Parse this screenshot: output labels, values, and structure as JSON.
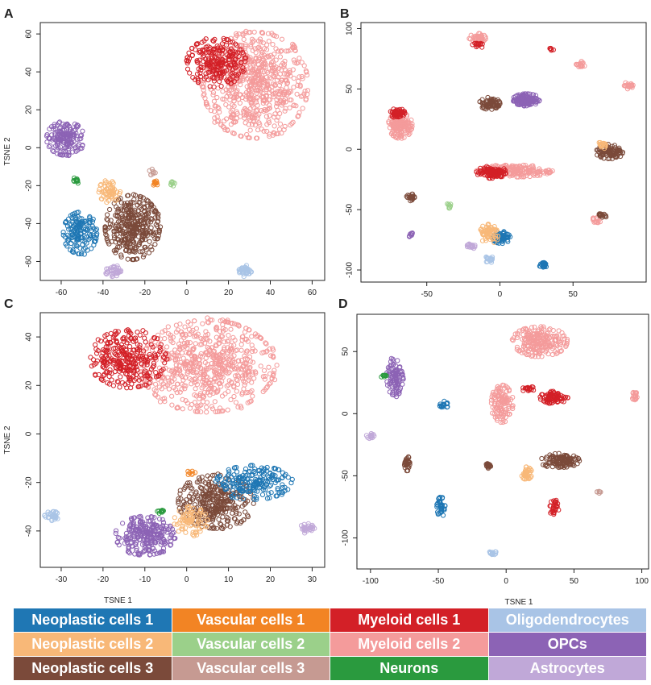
{
  "colors": {
    "Neoplastic cells 1": "#1f77b4",
    "Neoplastic cells 2": "#f8b878",
    "Neoplastic cells 3": "#7b4a3a",
    "Vascular cells 1": "#f28424",
    "Vascular cells 2": "#9bd08a",
    "Vascular cells 3": "#c69a92",
    "Myeloid cells 1": "#d32027",
    "Myeloid cells 2": "#f49b9b",
    "Neurons": "#2a9a3e",
    "Oligodendrocytes": "#a9c4e6",
    "OPCs": "#8c63b5",
    "Astrocytes": "#c0a8d8"
  },
  "legend": {
    "items": [
      "Neoplastic cells 1",
      "Vascular cells 1",
      "Myeloid cells 1",
      "Oligodendrocytes",
      "Neoplastic cells 2",
      "Vascular cells 2",
      "Myeloid cells 2",
      "OPCs",
      "Neoplastic cells 3",
      "Vascular cells 3",
      "Neurons",
      "Astrocytes"
    ]
  },
  "chart_data": [
    {
      "panel": "A",
      "type": "scatter",
      "xlabel": "",
      "ylabel": "TSNE 2",
      "xlim": [
        -70,
        66
      ],
      "ylim": [
        -70,
        66
      ],
      "xticks": [
        -60,
        -40,
        -20,
        0,
        20,
        40,
        60
      ],
      "yticks": [
        -60,
        -40,
        -20,
        0,
        20,
        40,
        60
      ],
      "clusters": [
        {
          "name": "Myeloid cells 2",
          "cx": 33,
          "cy": 33,
          "rx": 25,
          "ry": 28,
          "n": 650
        },
        {
          "name": "Myeloid cells 1",
          "cx": 14,
          "cy": 45,
          "rx": 14,
          "ry": 13,
          "n": 240
        },
        {
          "name": "OPCs",
          "cx": -58,
          "cy": 5,
          "rx": 9,
          "ry": 9,
          "n": 170
        },
        {
          "name": "Neoplastic cells 1",
          "cx": -51,
          "cy": -45,
          "rx": 8,
          "ry": 11,
          "n": 150
        },
        {
          "name": "Neoplastic cells 3",
          "cx": -26,
          "cy": -42,
          "rx": 13,
          "ry": 17,
          "n": 360
        },
        {
          "name": "Neoplastic cells 2",
          "cx": -37,
          "cy": -23,
          "rx": 5,
          "ry": 6,
          "n": 60
        },
        {
          "name": "Astrocytes",
          "cx": -35,
          "cy": -65,
          "rx": 4,
          "ry": 3,
          "n": 40
        },
        {
          "name": "Oligodendrocytes",
          "cx": 28,
          "cy": -65,
          "rx": 3,
          "ry": 3,
          "n": 40
        },
        {
          "name": "Neurons",
          "cx": -53,
          "cy": -17,
          "rx": 2,
          "ry": 2,
          "n": 12
        },
        {
          "name": "Vascular cells 1",
          "cx": -15,
          "cy": -18,
          "rx": 1.5,
          "ry": 2,
          "n": 10
        },
        {
          "name": "Vascular cells 2",
          "cx": -7,
          "cy": -19,
          "rx": 1.5,
          "ry": 2,
          "n": 8
        },
        {
          "name": "Vascular cells 3",
          "cx": -16,
          "cy": -13,
          "rx": 2,
          "ry": 2,
          "n": 8
        }
      ]
    },
    {
      "panel": "B",
      "type": "scatter",
      "xlabel": "",
      "ylabel": "",
      "xlim": [
        -95,
        100
      ],
      "ylim": [
        -110,
        105
      ],
      "xticks": [
        -50,
        0,
        50
      ],
      "yticks": [
        -100,
        -50,
        0,
        50,
        100
      ],
      "clusters": [
        {
          "name": "Myeloid cells 2",
          "cx": -68,
          "cy": 20,
          "rx": 8,
          "ry": 11,
          "n": 160
        },
        {
          "name": "Myeloid cells 1",
          "cx": -70,
          "cy": 30,
          "rx": 5,
          "ry": 4,
          "n": 60
        },
        {
          "name": "Myeloid cells 2",
          "cx": 10,
          "cy": -18,
          "rx": 25,
          "ry": 5,
          "n": 180
        },
        {
          "name": "Myeloid cells 1",
          "cx": -6,
          "cy": -19,
          "rx": 10,
          "ry": 5,
          "n": 100
        },
        {
          "name": "Myeloid cells 2",
          "cx": -15,
          "cy": 92,
          "rx": 6,
          "ry": 4,
          "n": 50
        },
        {
          "name": "Myeloid cells 1",
          "cx": -15,
          "cy": 86,
          "rx": 4,
          "ry": 2,
          "n": 15
        },
        {
          "name": "Myeloid cells 2",
          "cx": 55,
          "cy": 70,
          "rx": 3,
          "ry": 3,
          "n": 20
        },
        {
          "name": "Myeloid cells 2",
          "cx": 88,
          "cy": 53,
          "rx": 3,
          "ry": 3,
          "n": 20
        },
        {
          "name": "Myeloid cells 2",
          "cx": 66,
          "cy": -59,
          "rx": 3,
          "ry": 3,
          "n": 15
        },
        {
          "name": "OPCs",
          "cx": 18,
          "cy": 41,
          "rx": 9,
          "ry": 5,
          "n": 150
        },
        {
          "name": "Neoplastic cells 3",
          "cx": -7,
          "cy": 38,
          "rx": 7,
          "ry": 5,
          "n": 70
        },
        {
          "name": "Neoplastic cells 3",
          "cx": 75,
          "cy": -2,
          "rx": 9,
          "ry": 6,
          "n": 100
        },
        {
          "name": "Neoplastic cells 3",
          "cx": -61,
          "cy": -40,
          "rx": 3,
          "ry": 3,
          "n": 20
        },
        {
          "name": "Neoplastic cells 3",
          "cx": 70,
          "cy": -55,
          "rx": 3,
          "ry": 2,
          "n": 15
        },
        {
          "name": "Neoplastic cells 1",
          "cx": 1,
          "cy": -73,
          "rx": 6,
          "ry": 5,
          "n": 80
        },
        {
          "name": "Neoplastic cells 1",
          "cx": 30,
          "cy": -96,
          "rx": 3,
          "ry": 2,
          "n": 30
        },
        {
          "name": "Neoplastic cells 2",
          "cx": -7,
          "cy": -70,
          "rx": 7,
          "ry": 8,
          "n": 60
        },
        {
          "name": "Neoplastic cells 2",
          "cx": 70,
          "cy": 3,
          "rx": 4,
          "ry": 3,
          "n": 20
        },
        {
          "name": "Astrocytes",
          "cx": -20,
          "cy": -80,
          "rx": 3,
          "ry": 3,
          "n": 20
        },
        {
          "name": "Oligodendrocytes",
          "cx": -7,
          "cy": -91,
          "rx": 3,
          "ry": 3,
          "n": 20
        },
        {
          "name": "OPCs",
          "cx": -61,
          "cy": -71,
          "rx": 2,
          "ry": 2,
          "n": 10
        },
        {
          "name": "Vascular cells 2",
          "cx": -35,
          "cy": -47,
          "rx": 2,
          "ry": 2,
          "n": 8
        },
        {
          "name": "Myeloid cells 1",
          "cx": 35,
          "cy": 83,
          "rx": 2,
          "ry": 1,
          "n": 6
        }
      ]
    },
    {
      "panel": "C",
      "type": "scatter",
      "xlabel": "TSNE 1",
      "ylabel": "TSNE 2",
      "xlim": [
        -35,
        33
      ],
      "ylim": [
        -55,
        50
      ],
      "xticks": [
        -30,
        -20,
        -10,
        0,
        10,
        20,
        30
      ],
      "yticks": [
        -40,
        -20,
        0,
        20,
        40
      ],
      "clusters": [
        {
          "name": "Myeloid cells 2",
          "cx": 5,
          "cy": 28,
          "rx": 16,
          "ry": 19,
          "n": 650
        },
        {
          "name": "Myeloid cells 1",
          "cx": -14,
          "cy": 31,
          "rx": 9,
          "ry": 12,
          "n": 300
        },
        {
          "name": "OPCs",
          "cx": -10,
          "cy": -42,
          "rx": 7,
          "ry": 8,
          "n": 260
        },
        {
          "name": "Neoplastic cells 3",
          "cx": 7,
          "cy": -28,
          "rx": 9,
          "ry": 11,
          "n": 320
        },
        {
          "name": "Neoplastic cells 1",
          "cx": 16,
          "cy": -20,
          "rx": 9,
          "ry": 7,
          "n": 200
        },
        {
          "name": "Neoplastic cells 2",
          "cx": 1,
          "cy": -36,
          "rx": 4,
          "ry": 6,
          "n": 80
        },
        {
          "name": "Oligodendrocytes",
          "cx": -32,
          "cy": -34,
          "rx": 2,
          "ry": 2,
          "n": 30
        },
        {
          "name": "Astrocytes",
          "cx": 29,
          "cy": -39,
          "rx": 2,
          "ry": 2,
          "n": 30
        },
        {
          "name": "Neurons",
          "cx": -6,
          "cy": -32,
          "rx": 1,
          "ry": 1,
          "n": 10
        },
        {
          "name": "Vascular cells 1",
          "cx": 1,
          "cy": -16,
          "rx": 1,
          "ry": 1,
          "n": 8
        }
      ]
    },
    {
      "panel": "D",
      "type": "scatter",
      "xlabel": "TSNE 1",
      "ylabel": "",
      "xlim": [
        -110,
        105
      ],
      "ylim": [
        -125,
        80
      ],
      "xticks": [
        -100,
        -50,
        0,
        50,
        100
      ],
      "yticks": [
        -100,
        -50,
        0,
        50
      ],
      "clusters": [
        {
          "name": "Myeloid cells 2",
          "cx": 25,
          "cy": 58,
          "rx": 20,
          "ry": 12,
          "n": 220
        },
        {
          "name": "Myeloid cells 2",
          "cx": -3,
          "cy": 8,
          "rx": 8,
          "ry": 15,
          "n": 120
        },
        {
          "name": "Myeloid cells 2",
          "cx": 95,
          "cy": 14,
          "rx": 2,
          "ry": 4,
          "n": 20
        },
        {
          "name": "Myeloid cells 1",
          "cx": 35,
          "cy": 13,
          "rx": 10,
          "ry": 5,
          "n": 80
        },
        {
          "name": "Myeloid cells 1",
          "cx": 16,
          "cy": 20,
          "rx": 5,
          "ry": 2,
          "n": 20
        },
        {
          "name": "Myeloid cells 1",
          "cx": 35,
          "cy": -75,
          "rx": 4,
          "ry": 6,
          "n": 30
        },
        {
          "name": "OPCs",
          "cx": -82,
          "cy": 30,
          "rx": 6,
          "ry": 16,
          "n": 100
        },
        {
          "name": "Neoplastic cells 3",
          "cx": 40,
          "cy": -38,
          "rx": 14,
          "ry": 6,
          "n": 120
        },
        {
          "name": "Neoplastic cells 3",
          "cx": -73,
          "cy": -40,
          "rx": 2,
          "ry": 6,
          "n": 30
        },
        {
          "name": "Neoplastic cells 3",
          "cx": -12,
          "cy": -42,
          "rx": 3,
          "ry": 3,
          "n": 20
        },
        {
          "name": "Neoplastic cells 1",
          "cx": -48,
          "cy": -75,
          "rx": 3,
          "ry": 8,
          "n": 40
        },
        {
          "name": "Neoplastic cells 1",
          "cx": -46,
          "cy": 7,
          "rx": 3,
          "ry": 3,
          "n": 20
        },
        {
          "name": "Neoplastic cells 2",
          "cx": 15,
          "cy": -48,
          "rx": 4,
          "ry": 5,
          "n": 40
        },
        {
          "name": "Oligodendrocytes",
          "cx": -10,
          "cy": -112,
          "rx": 3,
          "ry": 2,
          "n": 15
        },
        {
          "name": "Astrocytes",
          "cx": -100,
          "cy": -18,
          "rx": 3,
          "ry": 2,
          "n": 15
        },
        {
          "name": "Neurons",
          "cx": -90,
          "cy": 30,
          "rx": 2,
          "ry": 2,
          "n": 8
        },
        {
          "name": "Vascular cells 3",
          "cx": 69,
          "cy": -63,
          "rx": 2,
          "ry": 1,
          "n": 6
        }
      ]
    }
  ]
}
